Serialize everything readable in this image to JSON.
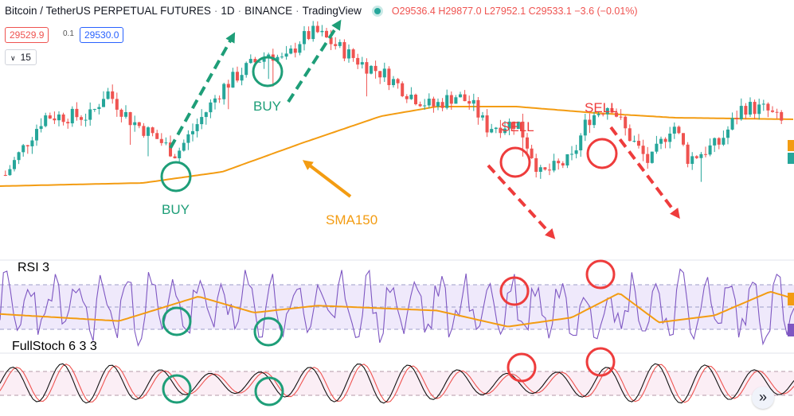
{
  "header": {
    "symbol": "Bitcoin / TetherUS PERPETUAL FUTURES",
    "interval": "1D",
    "exchange": "BINANCE",
    "source": "TradingView",
    "open": "O29536.4",
    "high": "H29877.0",
    "low": "L27952.1",
    "close": "C29533.1",
    "change": "−3.6 (−0.01%)"
  },
  "quote": {
    "bid": "29529.9",
    "spread": "0.1",
    "ask": "29530.0"
  },
  "volume_toggle": {
    "value": "15"
  },
  "annotations": {
    "buy_1": "BUY",
    "buy_2": "BUY",
    "sell_1": "SELL",
    "sell_2": "SELL",
    "sma": "SMA150"
  },
  "panes": {
    "rsi_label": "RSI 3",
    "stoch_label": "FullStoch  6 3 3"
  },
  "colors": {
    "up": "#26a69a",
    "down": "#ef5350",
    "sma": "#f39c12",
    "buy_arrow": "#1e9e78",
    "sell_arrow": "#ee3c3c",
    "rsi": "#7e57c2",
    "stoch_k": "#111111",
    "stoch_d": "#ef5350"
  },
  "chart_data": [
    {
      "type": "candlestick",
      "title": "Bitcoin / TetherUS PERPETUAL FUTURES · 1D · BINANCE",
      "series": [
        {
          "name": "SMA150",
          "waypoints": [
            [
              0,
              0.28
            ],
            [
              0.18,
              0.3
            ],
            [
              0.28,
              0.37
            ],
            [
              0.38,
              0.55
            ],
            [
              0.48,
              0.72
            ],
            [
              0.55,
              0.78
            ],
            [
              0.65,
              0.78
            ],
            [
              0.75,
              0.74
            ],
            [
              0.85,
              0.71
            ],
            [
              1.0,
              0.7
            ]
          ]
        }
      ],
      "price_path": [
        [
          0,
          0.35
        ],
        [
          0.05,
          0.72
        ],
        [
          0.11,
          0.72
        ],
        [
          0.13,
          0.88
        ],
        [
          0.16,
          0.7
        ],
        [
          0.19,
          0.6
        ],
        [
          0.22,
          0.48
        ],
        [
          0.28,
          0.9
        ],
        [
          0.31,
          1.02
        ],
        [
          0.34,
          1.12
        ],
        [
          0.36,
          1.06
        ],
        [
          0.38,
          1.2
        ],
        [
          0.4,
          1.25
        ],
        [
          0.43,
          1.15
        ],
        [
          0.46,
          1.05
        ],
        [
          0.49,
          0.98
        ],
        [
          0.52,
          0.86
        ],
        [
          0.55,
          0.78
        ],
        [
          0.58,
          0.85
        ],
        [
          0.6,
          0.8
        ],
        [
          0.62,
          0.65
        ],
        [
          0.66,
          0.68
        ],
        [
          0.69,
          0.35
        ],
        [
          0.73,
          0.45
        ],
        [
          0.75,
          0.7
        ],
        [
          0.78,
          0.8
        ],
        [
          0.8,
          0.62
        ],
        [
          0.83,
          0.42
        ],
        [
          0.86,
          0.68
        ],
        [
          0.88,
          0.45
        ],
        [
          0.92,
          0.55
        ],
        [
          0.95,
          0.78
        ],
        [
          0.98,
          0.76
        ],
        [
          1.0,
          0.68
        ]
      ],
      "legend": [
        "SMA150"
      ]
    },
    {
      "type": "line",
      "title": "RSI 3",
      "series": [
        {
          "name": "RSI 3",
          "style": "oscillating"
        },
        {
          "name": "signal",
          "color": "#f39c12",
          "waypoints": [
            [
              0,
              0.4
            ],
            [
              0.15,
              0.3
            ],
            [
              0.25,
              0.65
            ],
            [
              0.32,
              0.42
            ],
            [
              0.4,
              0.52
            ],
            [
              0.55,
              0.45
            ],
            [
              0.64,
              0.22
            ],
            [
              0.72,
              0.35
            ],
            [
              0.78,
              0.7
            ],
            [
              0.83,
              0.28
            ],
            [
              0.9,
              0.38
            ],
            [
              0.97,
              0.72
            ],
            [
              1.0,
              0.62
            ]
          ]
        }
      ],
      "guides": [
        "upper",
        "middle",
        "lower"
      ]
    },
    {
      "type": "line",
      "title": "FullStoch 6 3 3",
      "series": [
        {
          "name": "%K",
          "color": "#111111"
        },
        {
          "name": "%D",
          "color": "#ef5350"
        }
      ],
      "guides": [
        "upper",
        "lower"
      ]
    }
  ]
}
